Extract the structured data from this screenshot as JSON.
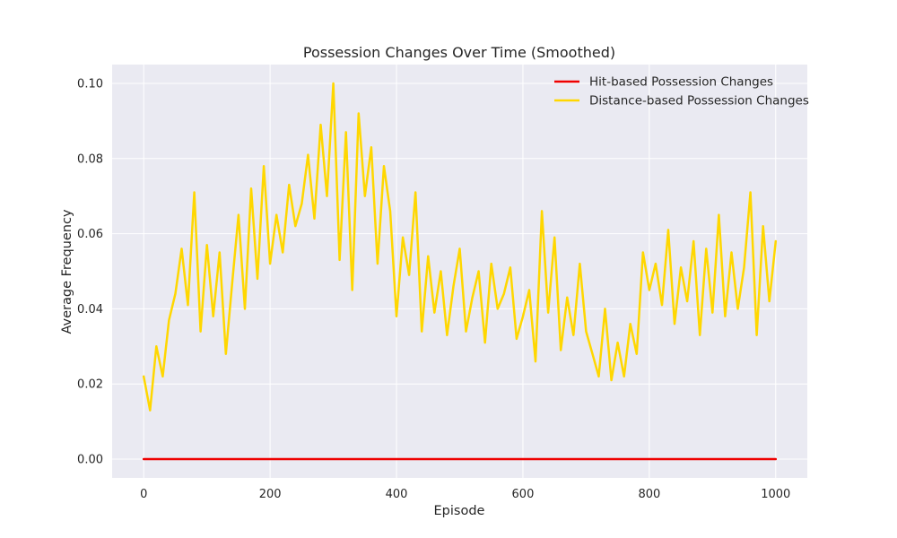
{
  "chart_data": {
    "type": "line",
    "title": "Possession Changes Over Time (Smoothed)",
    "xlabel": "Episode",
    "ylabel": "Average Frequency",
    "xlim": [
      -50,
      1050
    ],
    "ylim": [
      -0.005,
      0.105
    ],
    "xticks": [
      0,
      200,
      400,
      600,
      800,
      1000
    ],
    "yticks": [
      0.0,
      0.02,
      0.04,
      0.06,
      0.08,
      0.1
    ],
    "xtick_labels": [
      "0",
      "200",
      "400",
      "600",
      "800",
      "1000"
    ],
    "ytick_labels": [
      "0.00",
      "0.02",
      "0.04",
      "0.06",
      "0.08",
      "0.10"
    ],
    "grid": true,
    "legend_position": "top-right",
    "series": [
      {
        "name": "Hit-based Possession Changes",
        "color": "#ee0000",
        "x": [
          0,
          1000
        ],
        "y": [
          0.0,
          0.0
        ]
      },
      {
        "name": "Distance-based Possession Changes",
        "color": "#ffd700",
        "x": [
          0,
          10,
          20,
          30,
          40,
          50,
          60,
          70,
          80,
          90,
          100,
          110,
          120,
          130,
          140,
          150,
          160,
          170,
          180,
          190,
          200,
          210,
          220,
          230,
          240,
          250,
          260,
          270,
          280,
          290,
          300,
          310,
          320,
          330,
          340,
          350,
          360,
          370,
          380,
          390,
          400,
          410,
          420,
          430,
          440,
          450,
          460,
          470,
          480,
          490,
          500,
          510,
          520,
          530,
          540,
          550,
          560,
          570,
          580,
          590,
          600,
          610,
          620,
          630,
          640,
          650,
          660,
          670,
          680,
          690,
          700,
          710,
          720,
          730,
          740,
          750,
          760,
          770,
          780,
          790,
          800,
          810,
          820,
          830,
          840,
          850,
          860,
          870,
          880,
          890,
          900,
          910,
          920,
          930,
          940,
          950,
          960,
          970,
          980,
          990,
          1000
        ],
        "y": [
          0.022,
          0.013,
          0.03,
          0.022,
          0.037,
          0.044,
          0.056,
          0.041,
          0.071,
          0.034,
          0.057,
          0.038,
          0.055,
          0.028,
          0.047,
          0.065,
          0.04,
          0.072,
          0.048,
          0.078,
          0.052,
          0.065,
          0.055,
          0.073,
          0.062,
          0.068,
          0.081,
          0.064,
          0.089,
          0.07,
          0.1,
          0.053,
          0.087,
          0.045,
          0.092,
          0.07,
          0.083,
          0.052,
          0.078,
          0.066,
          0.038,
          0.059,
          0.049,
          0.071,
          0.034,
          0.054,
          0.039,
          0.05,
          0.033,
          0.046,
          0.056,
          0.034,
          0.043,
          0.05,
          0.031,
          0.052,
          0.04,
          0.044,
          0.051,
          0.032,
          0.038,
          0.045,
          0.026,
          0.066,
          0.039,
          0.059,
          0.029,
          0.043,
          0.033,
          0.052,
          0.034,
          0.028,
          0.022,
          0.04,
          0.021,
          0.031,
          0.022,
          0.036,
          0.028,
          0.055,
          0.045,
          0.052,
          0.041,
          0.061,
          0.036,
          0.051,
          0.042,
          0.058,
          0.033,
          0.056,
          0.039,
          0.065,
          0.038,
          0.055,
          0.04,
          0.051,
          0.071,
          0.033,
          0.062,
          0.042,
          0.058
        ]
      }
    ]
  }
}
